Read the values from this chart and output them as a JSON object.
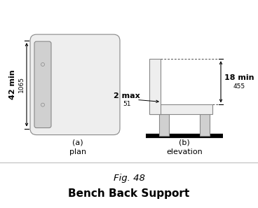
{
  "fig_title": "Fig. 48",
  "fig_subtitle": "Bench Back Support",
  "label_a": "(a)\nplan",
  "label_b": "(b)\nelevation",
  "dim_42min": "42 min",
  "dim_1065": "1065",
  "dim_2max": "2 max",
  "dim_51": "51",
  "dim_18min": "18 min",
  "dim_455": "455",
  "bg_color": "#ffffff",
  "line_color": "#000000",
  "shape_fill": "#eeeeee",
  "shape_edge": "#888888",
  "dark_fill": "#d0d0d0",
  "title_fontsize": 9.5,
  "label_fontsize": 8,
  "dim_fontsize": 8,
  "small_fontsize": 6.5
}
